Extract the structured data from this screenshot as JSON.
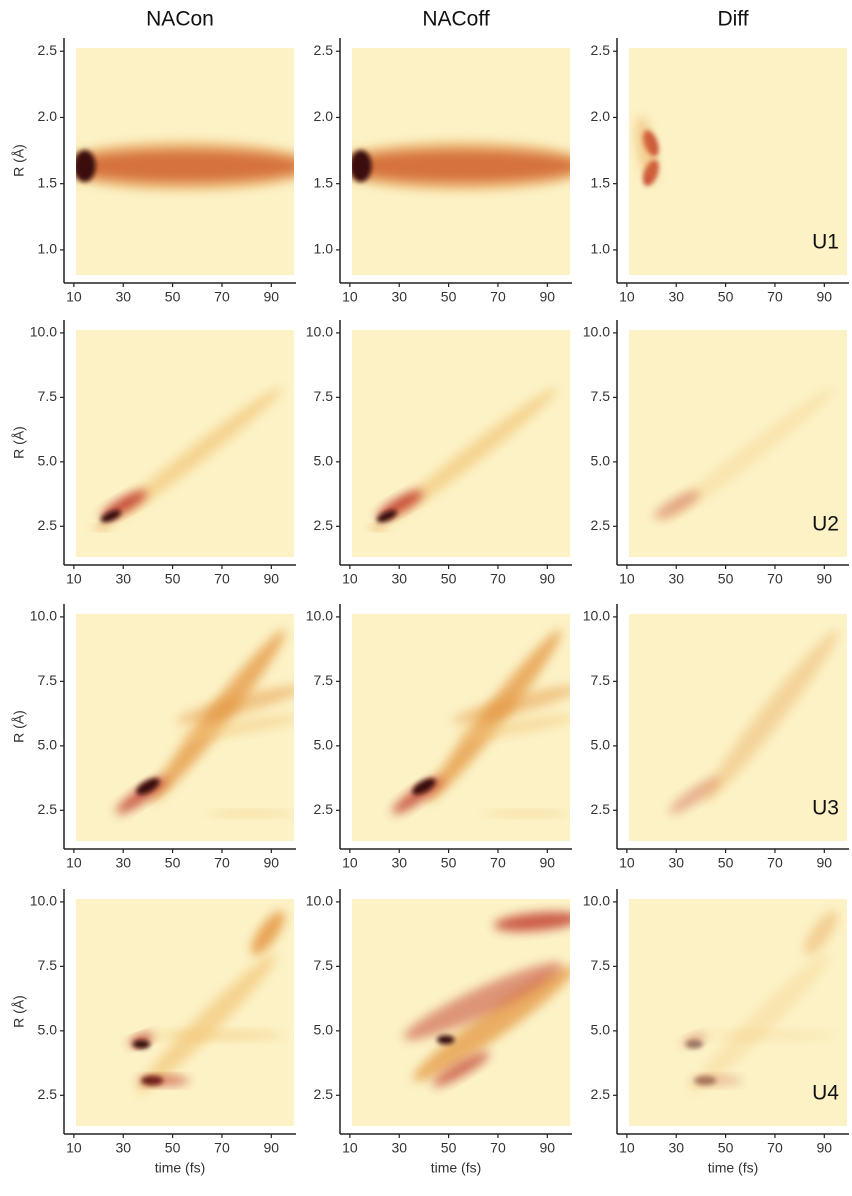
{
  "chart_data": [
    {
      "type": "heatmap",
      "title": "NACon",
      "y_label": "R (Å)",
      "xlim": [
        6,
        100
      ],
      "ylim": [
        0.75,
        2.6
      ],
      "xticks": [
        10,
        30,
        50,
        70,
        90
      ],
      "yticks": [
        {
          "value": 1,
          "label": "1.0"
        },
        1.5,
        {
          "value": 2,
          "label": "2.0"
        },
        2.5
      ]
    },
    {
      "type": "heatmap",
      "title": "NACoff",
      "xlim": [
        6,
        100
      ],
      "ylim": [
        0.75,
        2.6
      ],
      "xticks": [
        10,
        30,
        50,
        70,
        90
      ],
      "yticks": [
        {
          "value": 1,
          "label": "1.0"
        },
        1.5,
        {
          "value": 2,
          "label": "2.0"
        },
        2.5
      ]
    },
    {
      "type": "heatmap",
      "title": "Diff",
      "label": "U1",
      "xlim": [
        6,
        100
      ],
      "ylim": [
        0.75,
        2.6
      ],
      "xticks": [
        10,
        30,
        50,
        70,
        90
      ],
      "yticks": [
        {
          "value": 1,
          "label": "1.0"
        },
        1.5,
        {
          "value": 2,
          "label": "2.0"
        },
        2.5
      ]
    },
    {
      "type": "heatmap",
      "y_label": "R (Å)",
      "xlim": [
        6,
        100
      ],
      "ylim": [
        1,
        10.5
      ],
      "xticks": [
        10,
        30,
        50,
        70,
        90
      ],
      "yticks": [
        2.5,
        {
          "value": 5,
          "label": "5.0"
        },
        7.5,
        {
          "value": 10,
          "label": "10.0"
        }
      ]
    },
    {
      "type": "heatmap",
      "xlim": [
        6,
        100
      ],
      "ylim": [
        1,
        10.5
      ],
      "xticks": [
        10,
        30,
        50,
        70,
        90
      ],
      "yticks": [
        2.5,
        {
          "value": 5,
          "label": "5.0"
        },
        7.5,
        {
          "value": 10,
          "label": "10.0"
        }
      ]
    },
    {
      "type": "heatmap",
      "label": "U2",
      "xlim": [
        6,
        100
      ],
      "ylim": [
        1,
        10.5
      ],
      "xticks": [
        10,
        30,
        50,
        70,
        90
      ],
      "yticks": [
        2.5,
        {
          "value": 5,
          "label": "5.0"
        },
        7.5,
        {
          "value": 10,
          "label": "10.0"
        }
      ]
    },
    {
      "type": "heatmap",
      "y_label": "R (Å)",
      "xlim": [
        6,
        100
      ],
      "ylim": [
        1,
        10.5
      ],
      "xticks": [
        10,
        30,
        50,
        70,
        90
      ],
      "yticks": [
        2.5,
        {
          "value": 5,
          "label": "5.0"
        },
        7.5,
        {
          "value": 10,
          "label": "10.0"
        }
      ]
    },
    {
      "type": "heatmap",
      "xlim": [
        6,
        100
      ],
      "ylim": [
        1,
        10.5
      ],
      "xticks": [
        10,
        30,
        50,
        70,
        90
      ],
      "yticks": [
        2.5,
        {
          "value": 5,
          "label": "5.0"
        },
        7.5,
        {
          "value": 10,
          "label": "10.0"
        }
      ]
    },
    {
      "type": "heatmap",
      "label": "U3",
      "xlim": [
        6,
        100
      ],
      "ylim": [
        1,
        10.5
      ],
      "xticks": [
        10,
        30,
        50,
        70,
        90
      ],
      "yticks": [
        2.5,
        {
          "value": 5,
          "label": "5.0"
        },
        7.5,
        {
          "value": 10,
          "label": "10.0"
        }
      ]
    },
    {
      "type": "heatmap",
      "y_label": "R (Å)",
      "x_label": "time (fs)",
      "xlim": [
        6,
        100
      ],
      "ylim": [
        1,
        10.5
      ],
      "xticks": [
        10,
        30,
        50,
        70,
        90
      ],
      "yticks": [
        2.5,
        {
          "value": 5,
          "label": "5.0"
        },
        7.5,
        {
          "value": 10,
          "label": "10.0"
        }
      ]
    },
    {
      "type": "heatmap",
      "x_label": "time (fs)",
      "xlim": [
        6,
        100
      ],
      "ylim": [
        1,
        10.5
      ],
      "xticks": [
        10,
        30,
        50,
        70,
        90
      ],
      "yticks": [
        2.5,
        {
          "value": 5,
          "label": "5.0"
        },
        7.5,
        {
          "value": 10,
          "label": "10.0"
        }
      ]
    },
    {
      "type": "heatmap",
      "label": "U4",
      "x_label": "time (fs)",
      "xlim": [
        6,
        100
      ],
      "ylim": [
        1,
        10.5
      ],
      "xticks": [
        10,
        30,
        50,
        70,
        90
      ],
      "yticks": [
        2.5,
        {
          "value": 5,
          "label": "5.0"
        },
        7.5,
        {
          "value": 10,
          "label": "10.0"
        }
      ]
    }
  ]
}
